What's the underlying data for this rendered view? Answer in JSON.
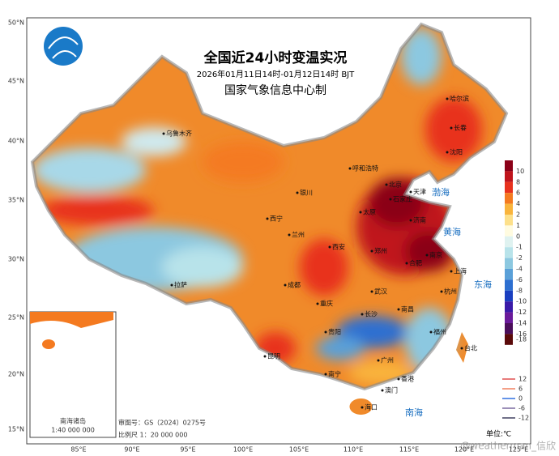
{
  "header": {
    "title": "全国近24小时变温实况",
    "subtitle": "2026年01月11日14时-01月12日14时 BJT",
    "organization": "国家气象信息中心制"
  },
  "axes": {
    "lat_labels": [
      "50°N",
      "45°N",
      "40°N",
      "35°N",
      "30°N",
      "25°N",
      "20°N",
      "15°N"
    ],
    "lon_labels": [
      "85°E",
      "90°E",
      "95°E",
      "100°E",
      "105°E",
      "110°E",
      "115°E",
      "120°E",
      "125°E"
    ]
  },
  "legend": {
    "items": [
      {
        "label": 10,
        "color": "#8b0018"
      },
      {
        "label": 8,
        "color": "#c0141c"
      },
      {
        "label": 6,
        "color": "#e8321e"
      },
      {
        "label": 4,
        "color": "#f47a20"
      },
      {
        "label": 2,
        "color": "#f9b43c"
      },
      {
        "label": 1,
        "color": "#fde08a"
      },
      {
        "label": 0,
        "color": "#fffbe0"
      },
      {
        "label": -1,
        "color": "#dff2f0"
      },
      {
        "label": -2,
        "color": "#b8e3ea"
      },
      {
        "label": -4,
        "color": "#8cc8e0"
      },
      {
        "label": -6,
        "color": "#5aa0d8"
      },
      {
        "label": -8,
        "color": "#2d6fd0"
      },
      {
        "label": -10,
        "color": "#1a3fc0"
      },
      {
        "label": -12,
        "color": "#3a1aa8"
      },
      {
        "label": -14,
        "color": "#6a1a9a"
      },
      {
        "label": -16,
        "color": "#4a0e5a"
      },
      {
        "label": -18,
        "color": "#5a0a0a"
      }
    ]
  },
  "contour_legend": {
    "items": [
      {
        "label": 12,
        "color": "#e05050"
      },
      {
        "label": 6,
        "color": "#f08060"
      },
      {
        "label": 0,
        "color": "#3070e0"
      },
      {
        "label": -6,
        "color": "#7a6aa0"
      },
      {
        "label": -12,
        "color": "#404060"
      }
    ]
  },
  "unit": "单位:℃",
  "cities": [
    "乌鲁木齐",
    "呼和浩特",
    "哈尔滨",
    "长春",
    "沈阳",
    "北京",
    "天津",
    "石家庄",
    "太原",
    "济南",
    "银川",
    "西宁",
    "兰州",
    "西安",
    "郑州",
    "拉萨",
    "成都",
    "重庆",
    "武汉",
    "合肥",
    "南京",
    "上海",
    "杭州",
    "长沙",
    "南昌",
    "贵阳",
    "昆明",
    "福州",
    "台北",
    "广州",
    "南宁",
    "香港",
    "澳门",
    "海口"
  ],
  "seas": [
    "渤海",
    "黄海",
    "东海",
    "南海"
  ],
  "inset": {
    "title": "南海诸岛",
    "scale": "1:40 000 000"
  },
  "footer": {
    "review_number": "审图号：GS（2024）0275号",
    "scale": "比例尺 1：20 000 000"
  },
  "watermark": "@weatherman_信欣"
}
